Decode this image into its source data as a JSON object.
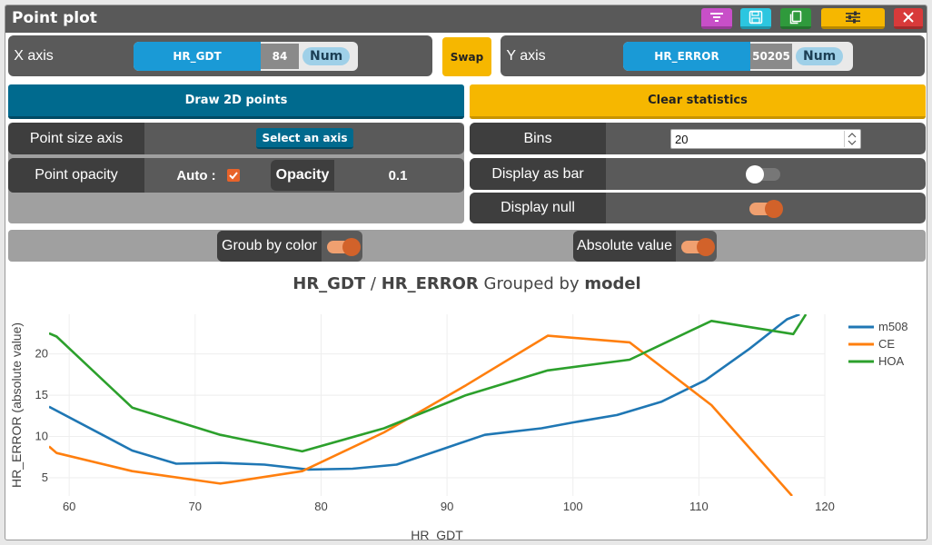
{
  "window": {
    "title": "Point plot"
  },
  "toolbar": {
    "filter_color": "#c84fc8",
    "save_color": "#2cc6e0",
    "copy_color": "#2f9a3c",
    "settings_color": "#f6b700",
    "close_color": "#d83a3a"
  },
  "x_axis": {
    "label": "X axis",
    "field": "HR_GDT",
    "count": "84",
    "type": "Num"
  },
  "swap_label": "Swap",
  "y_axis": {
    "label": "Y axis",
    "field": "HR_ERROR",
    "count": "50205",
    "type": "Num"
  },
  "actions": {
    "draw_label": "Draw 2D points",
    "clear_label": "Clear statistics"
  },
  "point_size": {
    "label": "Point size axis",
    "button": "Select an axis"
  },
  "point_opacity": {
    "label": "Point opacity",
    "auto_label": "Auto :",
    "auto_checked": true,
    "opacity_label": "Opacity",
    "opacity_value": "0.1"
  },
  "bins": {
    "label": "Bins",
    "value": "20"
  },
  "display_bar": {
    "label": "Display as bar",
    "on": false
  },
  "display_null": {
    "label": "Display null",
    "on": true
  },
  "group_color": {
    "label": "Groub by color",
    "on": true
  },
  "absolute": {
    "label": "Absolute value",
    "on": true
  },
  "chart_title": {
    "x": "HR_GDT",
    "sep": " / ",
    "y": "HR_ERROR",
    "grouped": " Grouped by ",
    "group": "model"
  },
  "chart_data": {
    "type": "line",
    "xlabel": "HR_GDT",
    "ylabel": "HR_ERROR (absolute value)",
    "xlim": [
      58.4,
      120
    ],
    "ylim": [
      2.8,
      24.8
    ],
    "xticks": [
      "60",
      "70",
      "80",
      "90",
      "100",
      "110",
      "120"
    ],
    "yticks": [
      "5",
      "10",
      "15",
      "20"
    ],
    "grid": true,
    "legend": "top-right",
    "series": [
      {
        "name": "m508",
        "color": "#1f77b4",
        "x": [
          58.4,
          65,
          68.5,
          72,
          75.5,
          79,
          82.5,
          86,
          89.5,
          93,
          97.5,
          100,
          103.5,
          107,
          110.5,
          114,
          117,
          118
        ],
        "y": [
          13.6,
          8.3,
          6.7,
          6.8,
          6.6,
          6.0,
          6.1,
          6.6,
          8.4,
          10.2,
          11.0,
          11.7,
          12.6,
          14.2,
          16.8,
          20.6,
          24.2,
          24.8
        ]
      },
      {
        "name": "CE",
        "color": "#ff7f0e",
        "x": [
          58.4,
          59,
          65,
          72,
          78.5,
          85,
          91.5,
          98,
          104.5,
          111,
          117.4
        ],
        "y": [
          8.8,
          8.0,
          5.8,
          4.3,
          5.8,
          10.5,
          16.2,
          22.2,
          21.4,
          13.8,
          2.8
        ]
      },
      {
        "name": "HOA",
        "color": "#2ca02c",
        "x": [
          58.4,
          59,
          65,
          72,
          78.5,
          85,
          91.5,
          98,
          104.5,
          111,
          117.5,
          118.5
        ],
        "y": [
          22.5,
          22.1,
          13.5,
          10.2,
          8.2,
          11.0,
          15.0,
          18.0,
          19.3,
          24.0,
          22.4,
          24.8
        ]
      }
    ]
  }
}
